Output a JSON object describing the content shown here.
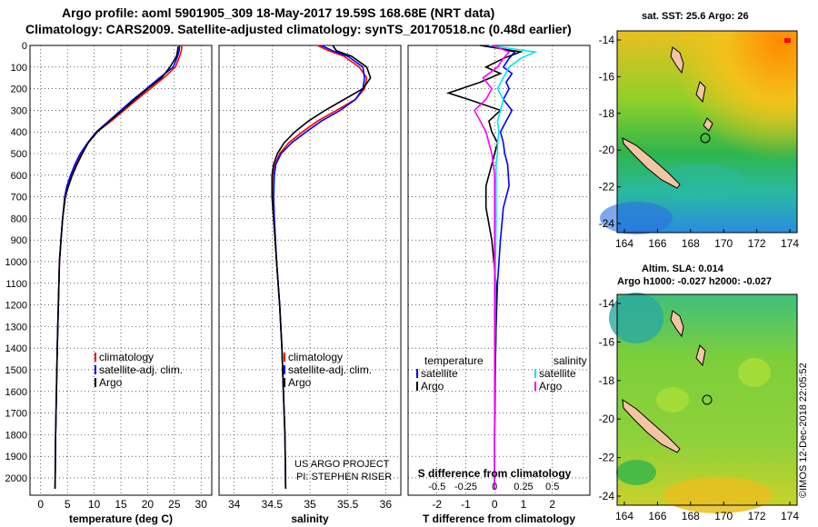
{
  "title_line1": "Argo profile: aoml 5901905_309 18-May-2017 19.59S 168.68E (NRT data)",
  "title_line2": "Climatology: CARS2009. Satellite-adjusted climatology: synTS_20170518.nc (0.48d earlier)",
  "map_top_title": "sat. SST: 25.6 Argo: 26",
  "map_bottom_title1": "Altim. SLA: 0.014",
  "map_bottom_title2": "Argo h1000: -0.027 h2000: -0.027",
  "credit_line1": "US ARGO PROJECT",
  "credit_line2": "PI: STEPHEN RISER",
  "stamp": "©IMOS 12-Dec-2018 22:05:52",
  "colors": {
    "climatology": "#ff0000",
    "satellite": "#0000ff",
    "argo": "#000000",
    "sat_sal": "#00e5ee",
    "argo_sal": "#ff00ff"
  },
  "chart_data": [
    {
      "type": "line",
      "id": "temperature",
      "xlabel": "temperature (deg C)",
      "ylim": [
        2080,
        0
      ],
      "xlim": [
        -2,
        32
      ],
      "xticks": [
        0,
        5,
        10,
        15,
        20,
        25,
        30
      ],
      "yticks": [
        0,
        100,
        200,
        300,
        400,
        500,
        600,
        700,
        800,
        900,
        1000,
        1100,
        1200,
        1300,
        1400,
        1500,
        1600,
        1700,
        1800,
        1900,
        2000
      ],
      "ytick_labels": [
        "0",
        "100",
        "200",
        "300",
        "400",
        "500",
        "600",
        "700",
        "800",
        "900",
        "1000",
        "1100",
        "1200",
        "1300",
        "1400",
        "1500",
        "1600",
        "1700",
        "1800",
        "1900",
        "2000"
      ],
      "legend": [
        "climatology",
        "satellite-adj. clim.",
        "Argo"
      ],
      "series": [
        {
          "name": "climatology",
          "color": "climatology",
          "x": [
            26.4,
            26.3,
            26.0,
            25.2,
            23.0,
            20.5,
            18.0,
            15.6,
            13.2,
            10.5,
            8.8,
            7.6,
            6.6,
            5.8,
            5.1,
            4.6,
            4.1,
            3.8,
            3.5,
            3.3,
            3.1,
            2.95,
            2.8,
            2.7
          ],
          "y": [
            0,
            25,
            50,
            100,
            150,
            200,
            250,
            300,
            350,
            400,
            450,
            500,
            550,
            600,
            650,
            700,
            800,
            900,
            1000,
            1200,
            1400,
            1600,
            1800,
            2050
          ]
        },
        {
          "name": "satellite-adj. clim.",
          "color": "satellite",
          "x": [
            26.0,
            25.9,
            25.6,
            24.8,
            22.2,
            19.8,
            17.3,
            15.0,
            12.7,
            10.4,
            8.8,
            7.4,
            6.4,
            5.6,
            4.9,
            4.5,
            4.1,
            3.8,
            3.5,
            3.3,
            3.1,
            2.95,
            2.8,
            2.7
          ],
          "y": [
            0,
            25,
            50,
            100,
            150,
            200,
            250,
            300,
            350,
            400,
            450,
            500,
            550,
            600,
            650,
            700,
            800,
            900,
            1000,
            1200,
            1400,
            1600,
            1800,
            2050
          ]
        },
        {
          "name": "Argo",
          "color": "argo",
          "x": [
            25.7,
            25.6,
            25.4,
            24.2,
            22.6,
            20.0,
            17.6,
            15.3,
            12.9,
            10.6,
            8.9,
            7.8,
            6.8,
            5.9,
            5.2,
            4.6,
            4.1,
            3.8,
            3.5,
            3.3,
            3.1,
            2.95,
            2.8,
            2.7
          ],
          "y": [
            5,
            25,
            50,
            100,
            150,
            200,
            250,
            300,
            350,
            400,
            450,
            500,
            550,
            600,
            650,
            700,
            800,
            900,
            1000,
            1200,
            1400,
            1600,
            1800,
            2050
          ]
        }
      ]
    },
    {
      "type": "line",
      "id": "salinity",
      "xlabel": "salinity",
      "ylim": [
        2080,
        0
      ],
      "xlim": [
        33.8,
        36.2
      ],
      "xticks": [
        34,
        34.5,
        35,
        35.5,
        36
      ],
      "xtick_labels": [
        "34",
        "34.5",
        "35",
        "35.5",
        "36"
      ],
      "legend": [
        "climatology",
        "satellite-adj. clim.",
        "Argo"
      ],
      "series": [
        {
          "name": "climatology",
          "color": "climatology",
          "x": [
            35.1,
            35.25,
            35.45,
            35.65,
            35.75,
            35.72,
            35.6,
            35.35,
            35.1,
            34.9,
            34.72,
            34.6,
            34.54,
            34.52,
            34.52,
            34.53,
            34.56,
            34.6,
            34.63,
            34.65,
            34.67,
            34.68
          ],
          "y": [
            0,
            25,
            50,
            100,
            150,
            200,
            250,
            300,
            350,
            400,
            450,
            500,
            550,
            600,
            700,
            800,
            1000,
            1200,
            1400,
            1600,
            1800,
            2050
          ]
        },
        {
          "name": "satellite-adj. clim.",
          "color": "satellite",
          "x": [
            35.15,
            35.3,
            35.5,
            35.7,
            35.72,
            35.7,
            35.6,
            35.4,
            35.15,
            34.95,
            34.76,
            34.62,
            34.55,
            34.53,
            34.52,
            34.53,
            34.56,
            34.6,
            34.63,
            34.65,
            34.67,
            34.68
          ],
          "y": [
            0,
            25,
            50,
            100,
            150,
            200,
            250,
            300,
            350,
            400,
            450,
            500,
            550,
            600,
            700,
            800,
            1000,
            1200,
            1400,
            1600,
            1800,
            2050
          ]
        },
        {
          "name": "Argo",
          "color": "argo",
          "x": [
            35.3,
            35.35,
            35.55,
            35.75,
            35.8,
            35.7,
            35.45,
            35.2,
            34.98,
            34.8,
            34.66,
            34.57,
            34.52,
            34.5,
            34.5,
            34.52,
            34.56,
            34.6,
            34.63,
            34.65,
            34.67,
            34.68
          ],
          "y": [
            0,
            25,
            50,
            100,
            150,
            200,
            250,
            300,
            350,
            400,
            450,
            500,
            550,
            600,
            700,
            800,
            1000,
            1200,
            1400,
            1600,
            1800,
            2050
          ]
        }
      ]
    },
    {
      "type": "line",
      "id": "difference",
      "xlabel": "T difference from climatology",
      "xlabel2": "S difference from climatology",
      "ylim": [
        2080,
        0
      ],
      "xlim": [
        -3,
        3.3
      ],
      "xticks": [
        -2,
        -1,
        0,
        1,
        2
      ],
      "s_ticks": [
        -0.5,
        -0.25,
        0,
        0.25,
        0.5
      ],
      "s_tick_labels": [
        "-0.5",
        "-0.25",
        "0",
        "0.25",
        "0.5"
      ],
      "legend_left_title": "temperature",
      "legend_right_title": "salinity",
      "legend_left": [
        "satellite",
        "Argo"
      ],
      "legend_right": [
        "satellite",
        "Argo"
      ],
      "series": [
        {
          "name": "satellite",
          "color": "satellite",
          "x": [
            -0.3,
            0.7,
            0.5,
            0.3,
            0.6,
            0.4,
            0.5,
            0.3,
            0.6,
            0.4,
            0.2,
            0.3,
            0.35,
            0.45,
            0.5,
            0.3,
            0.2,
            0.1,
            0.05,
            0.02,
            0.0,
            0.0
          ],
          "y": [
            0,
            30,
            60,
            100,
            130,
            170,
            200,
            250,
            300,
            350,
            400,
            450,
            500,
            550,
            650,
            750,
            900,
            1100,
            1300,
            1500,
            1800,
            2050
          ]
        },
        {
          "name": "Argo",
          "color": "argo",
          "x": [
            -0.5,
            0.9,
            0.3,
            -0.3,
            0.2,
            -0.5,
            -1.6,
            -0.9,
            0.2,
            -0.2,
            -0.1,
            0.1,
            0.0,
            -0.1,
            -0.3,
            -0.3,
            -0.1,
            0.05,
            0.05,
            0.02,
            0.0,
            0.0
          ],
          "y": [
            0,
            30,
            60,
            100,
            130,
            170,
            220,
            250,
            300,
            350,
            400,
            450,
            500,
            550,
            650,
            750,
            900,
            1100,
            1300,
            1500,
            1800,
            2050
          ]
        },
        {
          "name": "salinity satellite",
          "color": "sat_sal",
          "x": [
            -0.2,
            1.4,
            0.9,
            0.5,
            0.3,
            0.1,
            0.3,
            0.2,
            0.1,
            0.15,
            0.1,
            0.1,
            0.05,
            0.05,
            0.05,
            0.05,
            0.03,
            0.02,
            0.01,
            0.0,
            0.0
          ],
          "y": [
            0,
            30,
            60,
            100,
            150,
            200,
            250,
            300,
            350,
            400,
            450,
            500,
            550,
            600,
            700,
            800,
            1000,
            1200,
            1400,
            1600,
            2050
          ]
        },
        {
          "name": "salinity Argo",
          "color": "argo_sal",
          "x": [
            -0.1,
            0.5,
            0.3,
            0.1,
            -0.4,
            -0.1,
            -0.3,
            -0.7,
            -0.5,
            -0.3,
            -0.2,
            -0.1,
            -0.05,
            0.0,
            0.0,
            0.0,
            0.0
          ],
          "y": [
            0,
            30,
            60,
            100,
            150,
            200,
            250,
            300,
            350,
            400,
            450,
            500,
            550,
            600,
            700,
            800,
            2050
          ]
        }
      ]
    }
  ],
  "map_top": {
    "type": "heatmap",
    "xticks": [
      "164",
      "166",
      "168",
      "170",
      "172",
      "174"
    ],
    "yticks": [
      "-14",
      "-16",
      "-18",
      "-20",
      "-22",
      "-24"
    ]
  },
  "map_bottom": {
    "type": "heatmap",
    "xticks": [
      "164",
      "166",
      "168",
      "170",
      "172",
      "174"
    ],
    "yticks": [
      "-14",
      "-16",
      "-18",
      "-20",
      "-22",
      "-24"
    ]
  }
}
